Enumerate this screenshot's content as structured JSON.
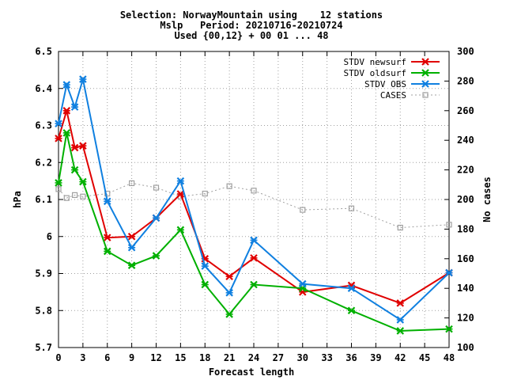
{
  "chart_data": {
    "type": "line",
    "title_lines": [
      "Selection: NorwayMountain using    12 stations",
      "Mslp   Period: 20210716-20210724",
      "Used {00,12} + 00 01 ... 48"
    ],
    "xlabel": "Forecast length",
    "ylabel": "hPa",
    "y2label": "No cases",
    "xlim": [
      0,
      48
    ],
    "ylim": [
      5.7,
      6.5
    ],
    "y2lim": [
      100,
      300
    ],
    "xticks": [
      0,
      3,
      6,
      9,
      12,
      15,
      18,
      21,
      24,
      27,
      30,
      33,
      36,
      39,
      42,
      45,
      48
    ],
    "yticks": [
      5.7,
      5.8,
      5.9,
      6.0,
      6.1,
      6.2,
      6.3,
      6.4,
      6.5
    ],
    "ytick_labels": [
      "5.7",
      "5.8",
      "5.9",
      "6",
      "6.1",
      "6.2",
      "6.3",
      "6.4",
      "6.5"
    ],
    "y2ticks": [
      100,
      120,
      140,
      160,
      180,
      200,
      220,
      240,
      260,
      280,
      300
    ],
    "legend_position": "top-right",
    "grid": true,
    "x": [
      0,
      1,
      2,
      3,
      6,
      9,
      12,
      15,
      18,
      21,
      24,
      30,
      36,
      42,
      48
    ],
    "series": [
      {
        "name": "STDV newsurf",
        "color": "#e00000",
        "marker": "x",
        "axis": "left",
        "values": [
          6.265,
          6.34,
          6.24,
          6.245,
          5.997,
          6.0,
          6.05,
          6.115,
          5.94,
          5.892,
          5.942,
          5.85,
          5.868,
          5.82,
          5.902
        ]
      },
      {
        "name": "STDV oldsurf",
        "color": "#00b000",
        "marker": "x",
        "axis": "left",
        "values": [
          6.145,
          6.28,
          6.18,
          6.148,
          5.96,
          5.922,
          5.948,
          6.018,
          5.87,
          5.79,
          5.87,
          5.86,
          5.8,
          5.745,
          5.75
        ]
      },
      {
        "name": "STDV OBS",
        "color": "#1080e0",
        "marker": "x",
        "axis": "left",
        "values": [
          6.305,
          6.41,
          6.35,
          6.425,
          6.095,
          5.97,
          6.05,
          6.15,
          5.92,
          5.848,
          5.99,
          5.872,
          5.86,
          5.775,
          5.902
        ]
      },
      {
        "name": "CASES",
        "color": "#a0a0a0",
        "marker": "square",
        "dashed": true,
        "axis": "right",
        "values": [
          207,
          201,
          203,
          202,
          204,
          211,
          208,
          202,
          204,
          209,
          206,
          193,
          194,
          181,
          183
        ]
      }
    ]
  }
}
